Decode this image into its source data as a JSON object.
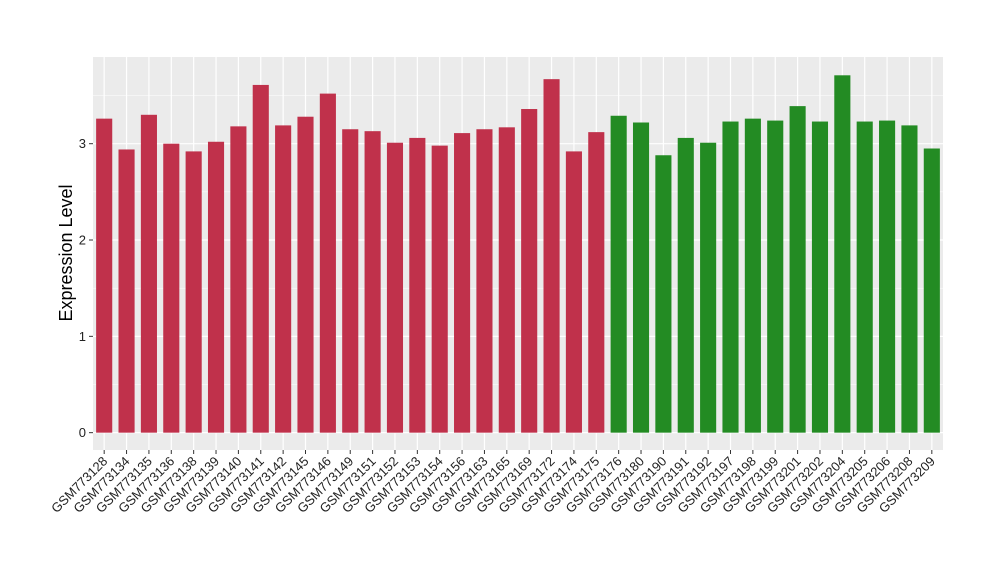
{
  "chart_data": {
    "type": "bar",
    "title": "",
    "xlabel": "",
    "ylabel": "Expression Level",
    "ylim": [
      -0.18,
      3.9
    ],
    "yticks": [
      0,
      1,
      2,
      3
    ],
    "grid": true,
    "legend": "none",
    "categories": [
      "GSM773128",
      "GSM773134",
      "GSM773135",
      "GSM773136",
      "GSM773138",
      "GSM773139",
      "GSM773140",
      "GSM773141",
      "GSM773142",
      "GSM773145",
      "GSM773146",
      "GSM773149",
      "GSM773151",
      "GSM773152",
      "GSM773153",
      "GSM773154",
      "GSM773156",
      "GSM773163",
      "GSM773165",
      "GSM773169",
      "GSM773172",
      "GSM773174",
      "GSM773175",
      "GSM773176",
      "GSM773180",
      "GSM773190",
      "GSM773191",
      "GSM773192",
      "GSM773197",
      "GSM773198",
      "GSM773199",
      "GSM773201",
      "GSM773202",
      "GSM773204",
      "GSM773205",
      "GSM773206",
      "GSM773208",
      "GSM773209"
    ],
    "values": [
      3.26,
      2.94,
      3.3,
      3.0,
      2.92,
      3.02,
      3.18,
      3.61,
      3.19,
      3.28,
      3.52,
      3.15,
      3.13,
      3.01,
      3.06,
      2.98,
      3.11,
      3.15,
      3.17,
      3.36,
      3.67,
      2.92,
      3.12,
      3.29,
      3.22,
      2.88,
      3.06,
      3.01,
      3.23,
      3.26,
      3.24,
      3.39,
      3.23,
      3.71,
      3.23,
      3.24,
      3.19,
      2.95
    ],
    "colors": [
      "#c0314b",
      "#c0314b",
      "#c0314b",
      "#c0314b",
      "#c0314b",
      "#c0314b",
      "#c0314b",
      "#c0314b",
      "#c0314b",
      "#c0314b",
      "#c0314b",
      "#c0314b",
      "#c0314b",
      "#c0314b",
      "#c0314b",
      "#c0314b",
      "#c0314b",
      "#c0314b",
      "#c0314b",
      "#c0314b",
      "#c0314b",
      "#c0314b",
      "#c0314b",
      "#238b23",
      "#238b23",
      "#238b23",
      "#238b23",
      "#238b23",
      "#238b23",
      "#238b23",
      "#238b23",
      "#238b23",
      "#238b23",
      "#238b23",
      "#238b23",
      "#238b23",
      "#238b23",
      "#238b23"
    ],
    "panel_background": "#ebebeb",
    "grid_color": "#ffffff"
  }
}
